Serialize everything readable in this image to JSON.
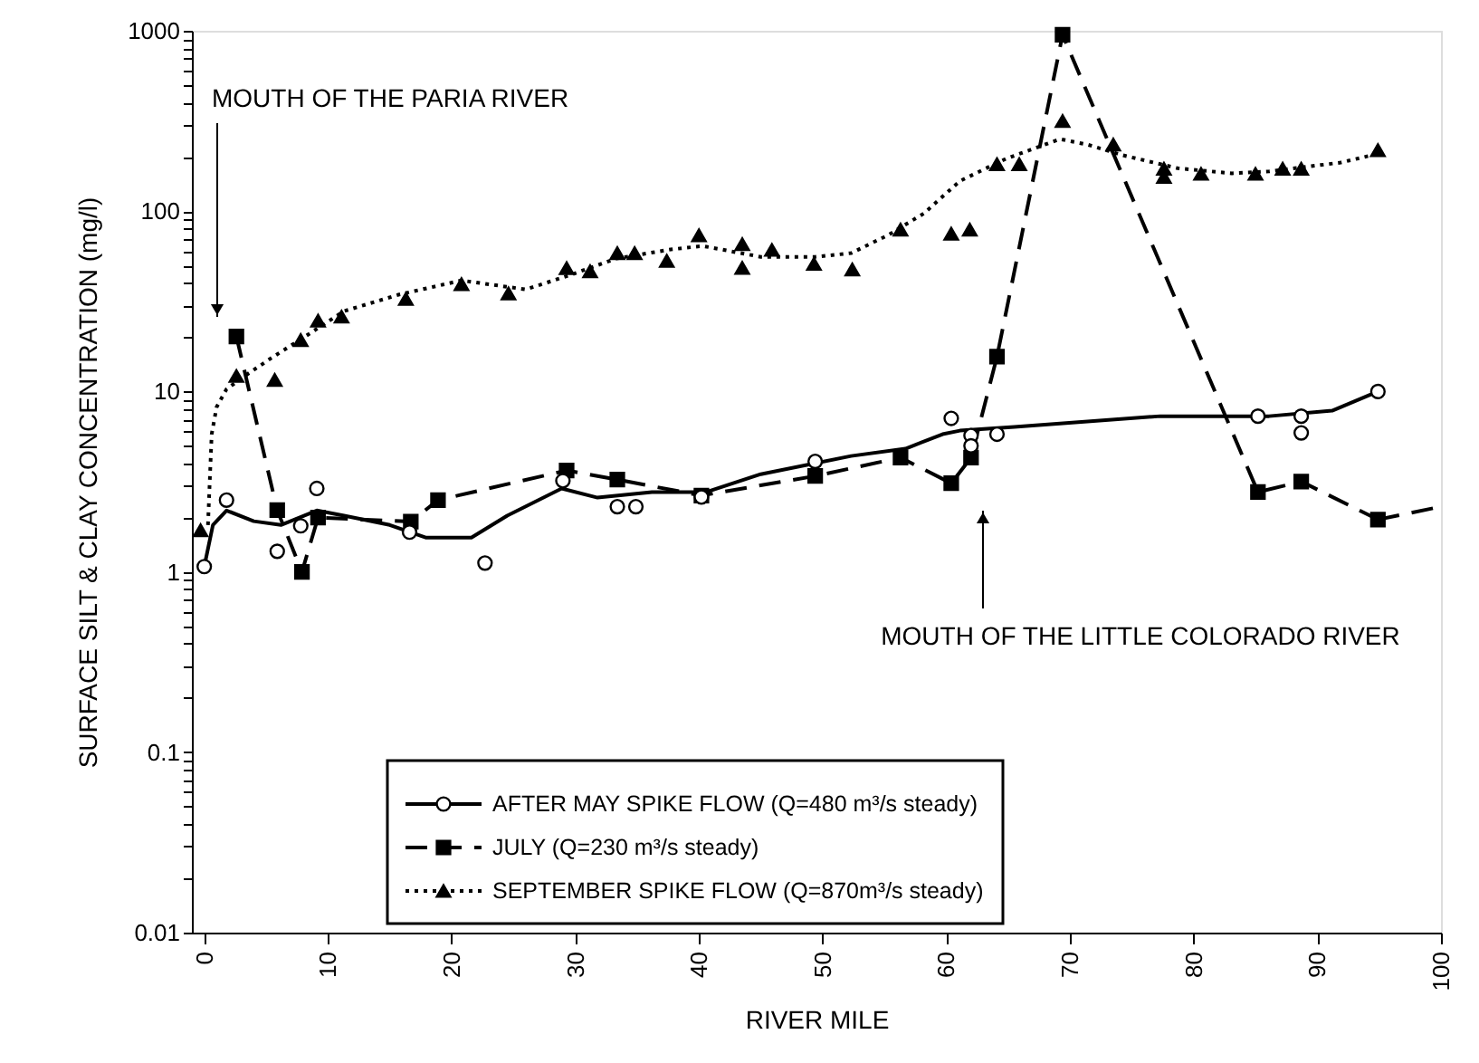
{
  "chart_data": {
    "type": "line",
    "xlabel": "RIVER MILE",
    "ylabel": "SURFACE SILT & CLAY CONCENTRATION (mg/l)",
    "xlim": [
      -1,
      100
    ],
    "xticks": [
      0,
      10,
      20,
      30,
      40,
      50,
      60,
      70,
      80,
      90,
      100
    ],
    "ylim": [
      0.01,
      1000
    ],
    "log": "y",
    "yticks": [
      0.01,
      {
        "value": 0.02,
        "label": null
      },
      {
        "value": 0.03,
        "label": null
      },
      {
        "value": 0.04,
        "label": null
      },
      {
        "value": 0.05,
        "label": null
      },
      {
        "value": 0.06,
        "label": null
      },
      {
        "value": 0.07,
        "label": null
      },
      {
        "value": 0.08,
        "label": null
      },
      {
        "value": 0.09,
        "label": null
      },
      0.1,
      {
        "value": 0.2,
        "label": null
      },
      {
        "value": 0.3,
        "label": null
      },
      {
        "value": 0.4,
        "label": null
      },
      {
        "value": 0.5,
        "label": null
      },
      {
        "value": 0.6,
        "label": null
      },
      {
        "value": 0.7,
        "label": null
      },
      {
        "value": 0.8,
        "label": null
      },
      {
        "value": 0.9,
        "label": null
      },
      1,
      {
        "value": 2,
        "label": null
      },
      {
        "value": 3,
        "label": null
      },
      {
        "value": 4,
        "label": null
      },
      {
        "value": 5,
        "label": null
      },
      {
        "value": 6,
        "label": null
      },
      {
        "value": 7,
        "label": null
      },
      {
        "value": 8,
        "label": null
      },
      {
        "value": 9,
        "label": null
      },
      10,
      {
        "value": 20,
        "label": null
      },
      {
        "value": 30,
        "label": null
      },
      {
        "value": 40,
        "label": null
      },
      {
        "value": 50,
        "label": null
      },
      {
        "value": 60,
        "label": null
      },
      {
        "value": 70,
        "label": null
      },
      {
        "value": 80,
        "label": null
      },
      {
        "value": 90,
        "label": null
      },
      100,
      {
        "value": 200,
        "label": null
      },
      {
        "value": 300,
        "label": null
      },
      {
        "value": 400,
        "label": null
      },
      {
        "value": 500,
        "label": null
      },
      {
        "value": 600,
        "label": null
      },
      {
        "value": 700,
        "label": null
      },
      {
        "value": 800,
        "label": null
      },
      {
        "value": 900,
        "label": null
      },
      1000
    ],
    "grid": false,
    "legend": "bottom left",
    "series": [
      {
        "color": "#000000",
        "line_style": "solid",
        "x": [
          0,
          0.7,
          1.8,
          4.0,
          6.2,
          9.1,
          11.3,
          15.0,
          17.9,
          21.6,
          24.5,
          28.9,
          31.8,
          36.2,
          40.6,
          45.0,
          52.3,
          56.7,
          59.7,
          61.1,
          65.5,
          77.3,
          86.1,
          91.2,
          94.9
        ],
        "values": [
          1.07,
          1.82,
          2.19,
          1.91,
          1.82,
          2.19,
          2.05,
          1.82,
          1.55,
          1.55,
          2.05,
          2.9,
          2.58,
          2.77,
          2.77,
          3.48,
          4.39,
          4.82,
          5.8,
          6.07,
          6.36,
          7.3,
          7.3,
          7.83,
          10.0
        ]
      },
      {
        "color": "#000000",
        "line_style": "dotted",
        "x": [
          0.3,
          0.6,
          1.0,
          1.8,
          3.2,
          5.4,
          8.4,
          11.3,
          15.7,
          20.8,
          26.0,
          29.6,
          33.3,
          37.7,
          40.3,
          45.0,
          49.4,
          52.3,
          55.3,
          58.2,
          61.1,
          64.8,
          69.2,
          71.4,
          74.3,
          78.7,
          83.1,
          86.1,
          91.9,
          94.9
        ],
        "values": [
          1.82,
          5.8,
          8.2,
          10.3,
          12.1,
          15.3,
          20.7,
          27.9,
          34.4,
          41.3,
          36.8,
          44.3,
          54.6,
          61.3,
          64.1,
          55.8,
          55.8,
          58.5,
          73.7,
          97.3,
          147,
          195,
          251,
          234,
          204,
          173,
          162,
          166,
          186,
          208
        ]
      },
      {
        "color": "#000000",
        "line_style": "dashed",
        "x": [
          94.9,
          100
        ],
        "values": [
          1.95,
          2.3
        ]
      },
      {
        "type": "scatter",
        "name": "AFTER MAY SPIKE FLOW (Q=480 m³/s steady)",
        "color": "#000000",
        "marker": "circle",
        "line_style": "solid",
        "x": [
          0,
          1.8,
          5.9,
          7.8,
          9.1,
          16.6,
          22.7,
          29.0,
          33.4,
          34.9,
          40.2,
          49.4,
          60.4,
          62.0,
          62.0,
          64.1,
          85.2,
          88.7,
          88.7,
          94.9
        ],
        "values": [
          1.07,
          2.5,
          1.3,
          1.8,
          2.9,
          1.66,
          1.12,
          3.2,
          2.3,
          2.3,
          2.6,
          4.1,
          7.1,
          5.7,
          5.0,
          5.8,
          7.3,
          7.3,
          5.9,
          10.0
        ]
      },
      {
        "name": "JULY (Q=230 m³/s steady)",
        "color": "#000000",
        "marker": "square",
        "line_style": "dashed",
        "x": [
          2.6,
          5.9,
          7.9,
          9.2,
          16.7,
          18.9,
          29.3,
          33.4,
          40.2,
          49.4,
          56.3,
          60.4,
          62.0,
          64.1,
          69.4,
          85.2,
          88.7,
          94.9
        ],
        "values": [
          20.2,
          2.2,
          1.0,
          2.0,
          1.9,
          2.5,
          3.65,
          3.25,
          2.65,
          3.4,
          4.3,
          3.1,
          4.3,
          15.6,
          950,
          2.77,
          3.17,
          1.95
        ]
      },
      {
        "type": "scatter",
        "name": "SEPTEMBER SPIKE FLOW (Q=870m³/s steady)",
        "color": "#000000",
        "marker": "triangle",
        "line_style": "dotted",
        "x": [
          -0.3,
          2.6,
          5.7,
          7.8,
          9.2,
          11.1,
          16.3,
          20.8,
          24.6,
          29.3,
          31.2,
          33.4,
          34.8,
          37.4,
          40.0,
          43.5,
          43.5,
          45.9,
          49.3,
          52.4,
          56.3,
          60.4,
          61.9,
          64.1,
          65.9,
          69.4,
          73.5,
          77.6,
          77.6,
          80.6,
          85.0,
          87.2,
          88.7,
          94.9
        ],
        "values": [
          1.7,
          12.2,
          11.6,
          19.3,
          24.7,
          26,
          32.6,
          39.4,
          35,
          48.3,
          46.4,
          58.5,
          58.5,
          53,
          73.5,
          65.6,
          48.5,
          61,
          51,
          47.5,
          79,
          75,
          79,
          182,
          182,
          316,
          234,
          172,
          155,
          161,
          161,
          172,
          172,
          218
        ]
      }
    ],
    "annotations": [
      "MOUTH OF THE PARIA RIVER",
      "MOUTH OF THE LITTLE COLORADO RIVER"
    ]
  }
}
